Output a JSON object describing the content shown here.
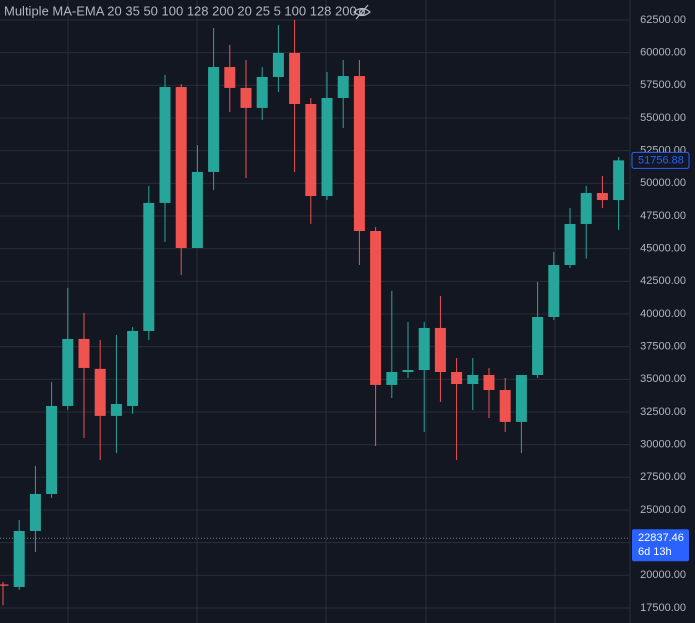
{
  "chart_data": {
    "type": "candlestick",
    "title": "Multiple MA-EMA 20 35 50 100 128 200 20 25 5 100 128 200",
    "up_color": "#26a69a",
    "down_color": "#ef5350",
    "grid": true,
    "ylim": [
      16350,
      64030
    ],
    "yticks": [
      {
        "value": 17500,
        "label": "17500.00"
      },
      {
        "value": 20000,
        "label": "20000.00"
      },
      {
        "value": 22500,
        "label": "22500.00"
      },
      {
        "value": 25000,
        "label": "25000.00"
      },
      {
        "value": 27500,
        "label": "27500.00"
      },
      {
        "value": 30000,
        "label": "30000.00"
      },
      {
        "value": 32500,
        "label": "32500.00"
      },
      {
        "value": 35000,
        "label": "35000.00"
      },
      {
        "value": 37500,
        "label": "37500.00"
      },
      {
        "value": 40000,
        "label": "40000.00"
      },
      {
        "value": 42500,
        "label": "42500.00"
      },
      {
        "value": 45000,
        "label": "45000.00"
      },
      {
        "value": 47500,
        "label": "47500.00"
      },
      {
        "value": 50000,
        "label": "50000.00"
      },
      {
        "value": 52500,
        "label": "52500.00"
      },
      {
        "value": 55000,
        "label": "55000.00"
      },
      {
        "value": 57500,
        "label": "57500.00"
      },
      {
        "value": 60000,
        "label": "60000.00"
      },
      {
        "value": 62500,
        "label": "62500.00"
      }
    ],
    "open": [
      19300,
      19107,
      23393,
      26225,
      32960,
      38090,
      35800,
      32200,
      32960,
      38700,
      48500,
      57370,
      45050,
      50870,
      58900,
      57300,
      55770,
      58140,
      59980,
      56070,
      49030,
      56530,
      58210,
      46350,
      34570,
      35560,
      35710,
      38930,
      35560,
      34640,
      35330,
      34180,
      31740,
      35330,
      39770,
      43750,
      46890,
      49260,
      48720
    ],
    "high": [
      19500,
      24234,
      28370,
      34800,
      41990,
      40080,
      38010,
      38390,
      39000,
      49800,
      58300,
      57600,
      52930,
      61890,
      60590,
      59440,
      58900,
      62120,
      62500,
      56530,
      58520,
      59440,
      59440,
      46660,
      41770,
      39390,
      39390,
      41380,
      36630,
      36630,
      35870,
      35100,
      35330,
      42450,
      44750,
      48110,
      49800,
      50560,
      52020
    ],
    "low": [
      17700,
      18880,
      21785,
      25920,
      32650,
      30510,
      28830,
      29360,
      32350,
      38010,
      45510,
      42990,
      45050,
      49490,
      55460,
      50410,
      54850,
      56990,
      50870,
      46890,
      48720,
      54230,
      43750,
      29900,
      33570,
      35100,
      30970,
      33270,
      28830,
      32650,
      32040,
      30970,
      29360,
      35100,
      39540,
      43520,
      44240,
      48110,
      46430
    ],
    "close": [
      19200,
      23393,
      26225,
      32960,
      38090,
      35870,
      32200,
      33110,
      38700,
      48500,
      57370,
      45050,
      50870,
      58900,
      57300,
      55770,
      58140,
      59980,
      56070,
      49030,
      56530,
      58210,
      46350,
      34570,
      35560,
      35710,
      38930,
      35560,
      34640,
      35330,
      34180,
      31740,
      35330,
      39770,
      43750,
      46890,
      49260,
      48720,
      51756.88
    ],
    "price_labels": [
      {
        "value": 51756.88,
        "style": "outline",
        "color": "#2962ff"
      },
      {
        "value": 22837.46,
        "sublabel": "6d 13h",
        "style": "filled",
        "color": "#2962ff"
      }
    ]
  }
}
